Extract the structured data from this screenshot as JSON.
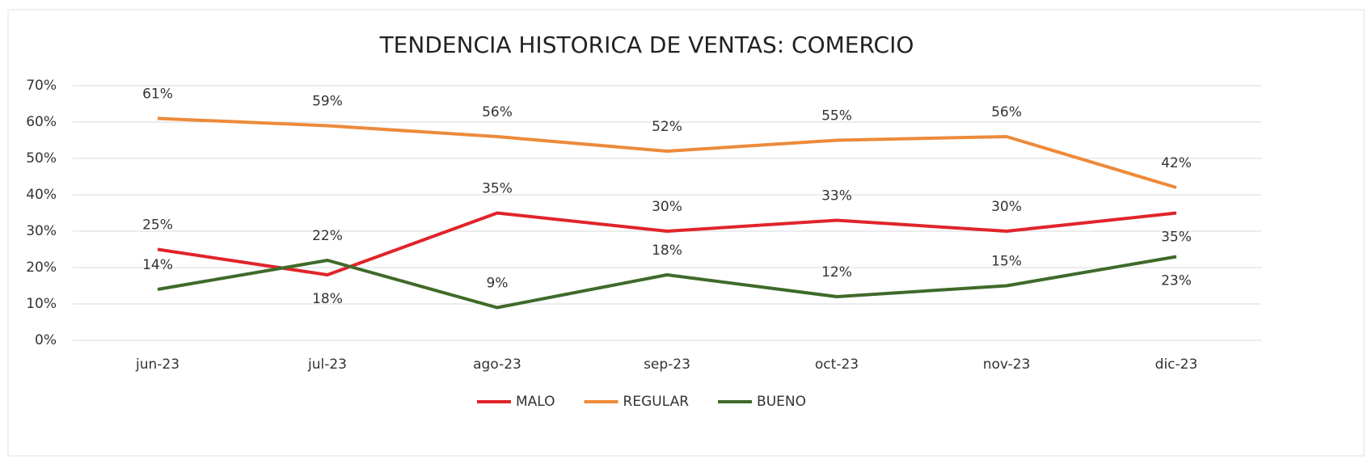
{
  "chart_data": {
    "type": "line",
    "title": "TENDENCIA HISTORICA DE VENTAS: COMERCIO",
    "categories": [
      "jun-23",
      "jul-23",
      "ago-23",
      "sep-23",
      "oct-23",
      "nov-23",
      "dic-23"
    ],
    "series": [
      {
        "name": "MALO",
        "color": "#e0242a",
        "values": [
          25,
          18,
          35,
          30,
          33,
          30,
          35
        ],
        "value_labels": [
          "25%",
          "18%",
          "35%",
          "30%",
          "33%",
          "30%",
          "35%"
        ]
      },
      {
        "name": "REGULAR",
        "color": "#ed8a3a",
        "values": [
          61,
          59,
          56,
          52,
          55,
          56,
          42
        ],
        "value_labels": [
          "61%",
          "59%",
          "56%",
          "52%",
          "55%",
          "56%",
          "42%"
        ]
      },
      {
        "name": "BUENO",
        "color": "#3f6a2a",
        "values": [
          14,
          22,
          9,
          18,
          12,
          15,
          23
        ],
        "value_labels": [
          "14%",
          "22%",
          "9%",
          "18%",
          "12%",
          "15%",
          "23%"
        ]
      }
    ],
    "ylim": [
      0,
      70
    ],
    "yticks": [
      {
        "value": 0,
        "label": "0%"
      },
      {
        "value": 10,
        "label": "10%"
      },
      {
        "value": 20,
        "label": "20%"
      },
      {
        "value": 30,
        "label": "30%"
      },
      {
        "value": 40,
        "label": "40%"
      },
      {
        "value": 50,
        "label": "50%"
      },
      {
        "value": 60,
        "label": "60%"
      },
      {
        "value": 70,
        "label": "70%"
      }
    ],
    "grid": true,
    "legend": "bottom"
  }
}
